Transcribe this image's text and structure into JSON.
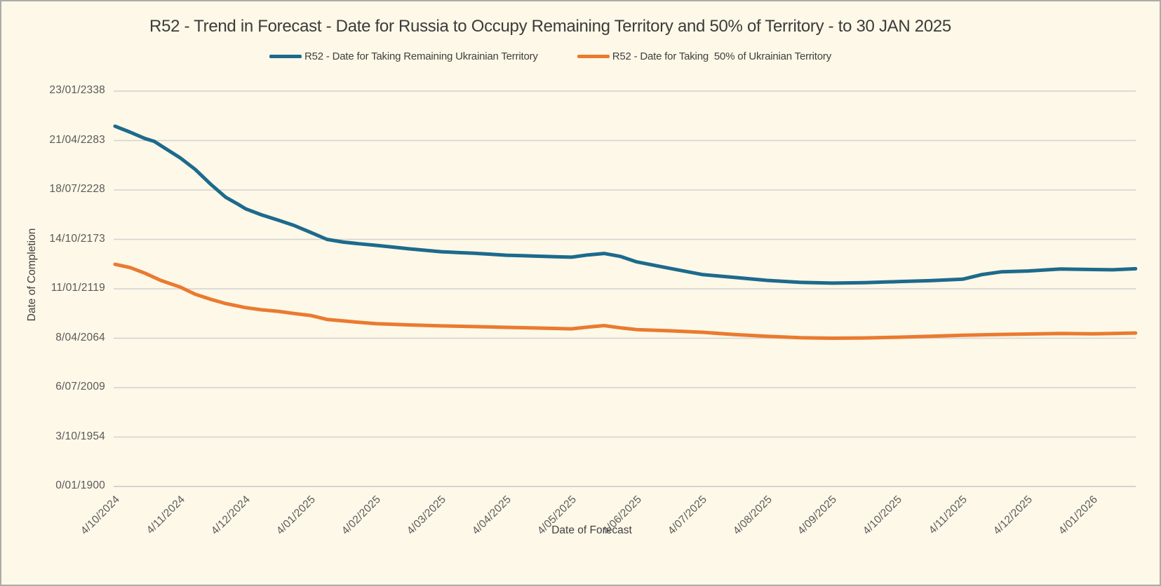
{
  "window": {
    "background_color": "#FDF8E7",
    "border_color": "#ABABAB",
    "gridline_color": "#D2D2D2"
  },
  "chart_data": {
    "type": "line",
    "title": "R52 - Trend in Forecast - Date for Russia to Occupy Remaining Territory and 50% of Territory - to 30 JAN 2025",
    "xlabel": "Date of Forecast",
    "ylabel": "Date of Completion",
    "grid": true,
    "legend_position": "top",
    "y_axis": {
      "unit": "excel-serial-date-days",
      "range": [
        0,
        160000
      ],
      "tick_step": 20000,
      "tick_labels_bottom_to_top": [
        "0/01/1900",
        "3/10/1954",
        "6/07/2009",
        "8/04/2064",
        "11/01/2119",
        "14/10/2173",
        "18/07/2228",
        "21/04/2283",
        "23/01/2338"
      ]
    },
    "x_axis": {
      "tick_labels": [
        "4/10/2024",
        "4/11/2024",
        "4/12/2024",
        "4/01/2025",
        "4/02/2025",
        "4/03/2025",
        "4/04/2025",
        "4/05/2025",
        "4/06/2025",
        "4/07/2025",
        "4/08/2025",
        "4/09/2025",
        "4/10/2025",
        "4/11/2025",
        "4/12/2025",
        "4/01/2026"
      ],
      "data_extends_past_last_tick_months": 0.65
    },
    "series": [
      {
        "name": "R52 - Date for Taking Remaining Ukrainian Territory",
        "color": "#1D6A8D",
        "points_month_index_vs_serial": [
          [
            0,
            145800
          ],
          [
            0.23,
            143400
          ],
          [
            0.46,
            140800
          ],
          [
            0.6,
            139700
          ],
          [
            0.8,
            136300
          ],
          [
            1,
            133000
          ],
          [
            1.23,
            128300
          ],
          [
            1.46,
            122500
          ],
          [
            1.7,
            117000
          ],
          [
            1.9,
            114000
          ],
          [
            2,
            112400
          ],
          [
            2.25,
            109900
          ],
          [
            2.5,
            107800
          ],
          [
            2.75,
            105600
          ],
          [
            3,
            102800
          ],
          [
            3.25,
            100000
          ],
          [
            3.5,
            98900
          ],
          [
            3.75,
            98200
          ],
          [
            4,
            97600
          ],
          [
            4.25,
            96900
          ],
          [
            4.5,
            96200
          ],
          [
            4.75,
            95600
          ],
          [
            5,
            95000
          ],
          [
            5.25,
            94700
          ],
          [
            5.5,
            94400
          ],
          [
            5.75,
            94000
          ],
          [
            6,
            93600
          ],
          [
            6.25,
            93400
          ],
          [
            6.5,
            93200
          ],
          [
            6.75,
            93000
          ],
          [
            7,
            92800
          ],
          [
            7.25,
            93700
          ],
          [
            7.5,
            94300
          ],
          [
            7.75,
            93100
          ],
          [
            8,
            90900
          ],
          [
            8.5,
            88300
          ],
          [
            9,
            85800
          ],
          [
            9.5,
            84600
          ],
          [
            10,
            83400
          ],
          [
            10.5,
            82600
          ],
          [
            11,
            82300
          ],
          [
            11.5,
            82500
          ],
          [
            12,
            82900
          ],
          [
            12.5,
            83300
          ],
          [
            13,
            83900
          ],
          [
            13.3,
            85800
          ],
          [
            13.6,
            86900
          ],
          [
            14,
            87200
          ],
          [
            14.5,
            88000
          ],
          [
            15,
            87800
          ],
          [
            15.3,
            87700
          ],
          [
            15.65,
            88100
          ]
        ]
      },
      {
        "name": "R52 - Date for Taking  50% of Ukrainian Territory",
        "color": "#EA7A30",
        "points_month_index_vs_serial": [
          [
            0,
            89900
          ],
          [
            0.23,
            88600
          ],
          [
            0.46,
            86300
          ],
          [
            0.7,
            83400
          ],
          [
            1,
            80700
          ],
          [
            1.23,
            77800
          ],
          [
            1.46,
            75800
          ],
          [
            1.7,
            74000
          ],
          [
            2,
            72400
          ],
          [
            2.25,
            71500
          ],
          [
            2.5,
            70900
          ],
          [
            2.75,
            70000
          ],
          [
            3,
            69200
          ],
          [
            3.25,
            67600
          ],
          [
            3.5,
            67000
          ],
          [
            3.75,
            66400
          ],
          [
            4,
            65900
          ],
          [
            4.5,
            65400
          ],
          [
            5,
            65000
          ],
          [
            5.5,
            64700
          ],
          [
            6,
            64400
          ],
          [
            6.5,
            64100
          ],
          [
            7,
            63800
          ],
          [
            7.25,
            64500
          ],
          [
            7.5,
            65100
          ],
          [
            7.75,
            64200
          ],
          [
            8,
            63500
          ],
          [
            8.5,
            63000
          ],
          [
            9,
            62400
          ],
          [
            9.5,
            61500
          ],
          [
            10,
            60800
          ],
          [
            10.5,
            60200
          ],
          [
            11,
            60000
          ],
          [
            11.5,
            60100
          ],
          [
            12,
            60400
          ],
          [
            12.5,
            60800
          ],
          [
            13,
            61200
          ],
          [
            13.5,
            61500
          ],
          [
            14,
            61700
          ],
          [
            14.5,
            61900
          ],
          [
            15,
            61800
          ],
          [
            15.65,
            62100
          ]
        ]
      }
    ]
  }
}
